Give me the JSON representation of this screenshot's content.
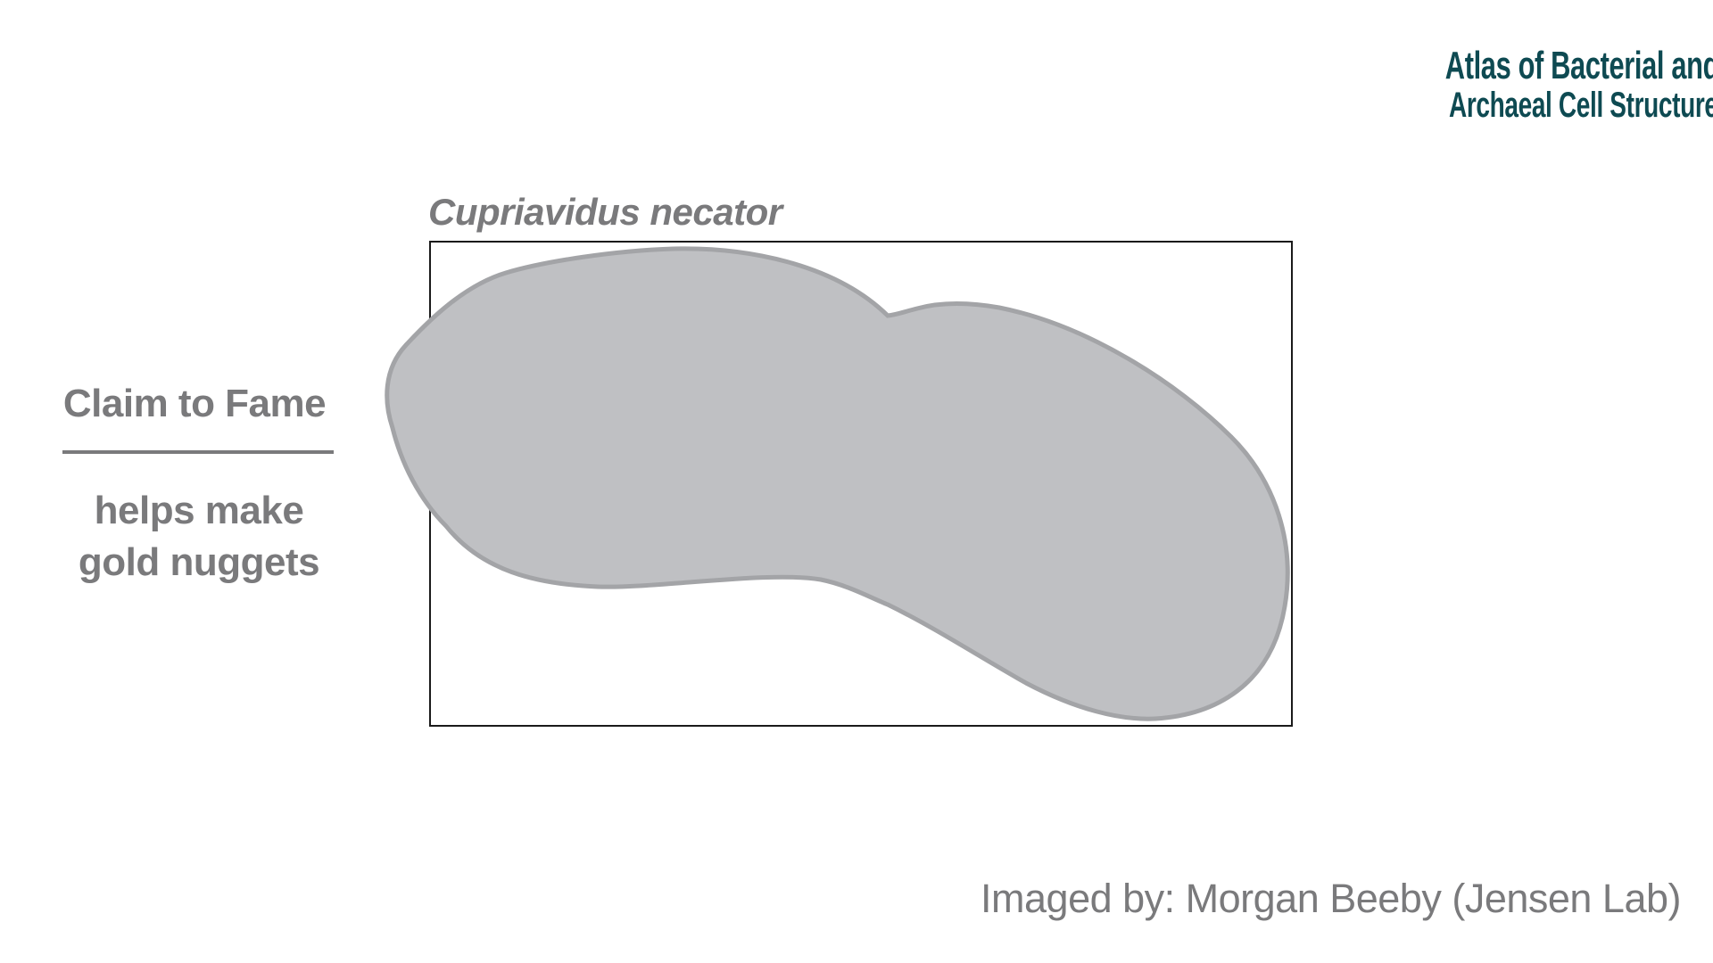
{
  "colors": {
    "text_gray": "#7a7a7c",
    "logo_teal": "#0e4a52",
    "cell_fill": "#bfc0c3",
    "cell_stroke": "#a3a4a7",
    "frame_stroke": "#1a1a1a",
    "rule": "#7a7a7c"
  },
  "logo": {
    "line1": "Atlas of Bacterial and",
    "line2": "Archaeal Cell Structure"
  },
  "species": "Cupriavidus necator",
  "claim": {
    "title": "Claim to Fame",
    "line1": "helps make",
    "line2": "gold nuggets"
  },
  "credit": "Imaged by: Morgan Beeby (Jensen Lab)"
}
